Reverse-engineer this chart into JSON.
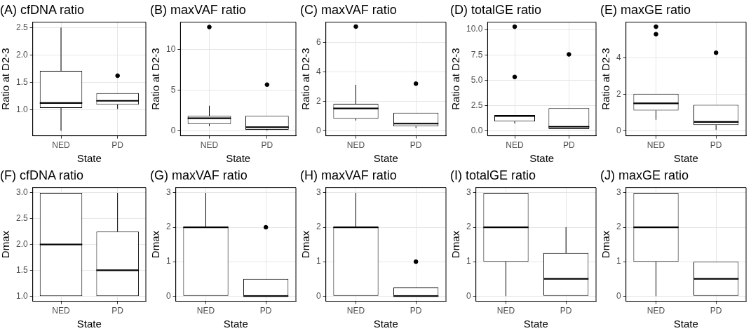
{
  "chart_data": [
    {
      "type": "box",
      "title": "(A) cfDNA ratio",
      "xlabel": "State",
      "ylabel": "Ratio at D2-3",
      "categories": [
        "NED",
        "PD"
      ],
      "ylim": [
        0.52,
        2.6
      ],
      "yticks": [
        {
          "value": 1,
          "label": "1.0"
        },
        {
          "value": 1.5,
          "label": "1.5"
        },
        {
          "value": 2,
          "label": "2.0"
        },
        {
          "value": 2.5,
          "label": "2.5"
        }
      ],
      "grid": true,
      "boxes": [
        {
          "low": 0.61,
          "q1": 1.03,
          "median": 1.12,
          "q3": 1.71,
          "high": 2.5
        },
        {
          "low": 1.01,
          "q1": 1.09,
          "median": 1.16,
          "q3": 1.3,
          "high": 1.3,
          "outliers": [
            1.62
          ]
        }
      ]
    },
    {
      "type": "box",
      "title": "(B) maxVAF ratio",
      "xlabel": "State",
      "ylabel": "Ratio at D2-3",
      "categories": [
        "NED",
        "PD"
      ],
      "ylim": [
        -0.6,
        13.4
      ],
      "yticks": [
        0,
        5,
        10
      ],
      "grid": true,
      "boxes": [
        {
          "low": 0.6,
          "q1": 0.85,
          "median": 1.55,
          "q3": 1.85,
          "high": 3.1,
          "outliers": [
            12.8
          ]
        },
        {
          "low": 0.05,
          "q1": 0.15,
          "median": 0.45,
          "q3": 1.85,
          "high": 1.85,
          "outliers": [
            5.7
          ]
        }
      ]
    },
    {
      "type": "box",
      "title": "(C) maxVAF ratio",
      "xlabel": "State",
      "ylabel": "Ratio at D2-3",
      "categories": [
        "NED",
        "PD"
      ],
      "ylim": [
        -0.34,
        7.4
      ],
      "yticks": [
        0,
        2,
        4,
        6
      ],
      "grid": true,
      "boxes": [
        {
          "low": 0.7,
          "q1": 0.82,
          "median": 1.52,
          "q3": 1.84,
          "high": 3.13,
          "outliers": [
            7.1
          ]
        },
        {
          "low": 0.19,
          "q1": 0.3,
          "median": 0.49,
          "q3": 1.23,
          "high": 1.23,
          "outliers": [
            3.21
          ]
        }
      ]
    },
    {
      "type": "box",
      "title": "(D) totalGE ratio",
      "xlabel": "State",
      "ylabel": "Ratio at D2-3",
      "categories": [
        "NED",
        "PD"
      ],
      "ylim": [
        -0.49,
        10.73
      ],
      "yticks": [
        {
          "value": 0,
          "label": "0.0"
        },
        {
          "value": 2.5,
          "label": "2.5"
        },
        {
          "value": 5,
          "label": "5.0"
        },
        {
          "value": 7.5,
          "label": "7.5"
        },
        {
          "value": 10,
          "label": "10.0"
        }
      ],
      "grid": true,
      "boxes": [
        {
          "low": 0.73,
          "q1": 0.92,
          "median": 1.47,
          "q3": 1.56,
          "high": 1.56,
          "outliers": [
            5.32,
            10.28
          ]
        },
        {
          "low": 0.18,
          "q1": 0.18,
          "median": 0.4,
          "q3": 2.23,
          "high": 2.23,
          "outliers": [
            7.55
          ]
        }
      ]
    },
    {
      "type": "box",
      "title": "(E) maxGE ratio",
      "xlabel": "State",
      "ylabel": "Ratio at D2-3",
      "categories": [
        "NED",
        "PD"
      ],
      "ylim": [
        -0.27,
        5.97
      ],
      "yticks": [
        0,
        2,
        4
      ],
      "grid": true,
      "boxes": [
        {
          "low": 0.61,
          "q1": 1.12,
          "median": 1.51,
          "q3": 2.04,
          "high": 2.04,
          "outliers": [
            5.31,
            5.72
          ]
        },
        {
          "low": 0.05,
          "q1": 0.32,
          "median": 0.49,
          "q3": 1.43,
          "high": 1.43,
          "outliers": [
            4.29
          ]
        }
      ]
    },
    {
      "type": "box",
      "title": "(F) cfDNA ratio",
      "xlabel": "State",
      "ylabel": "Dmax",
      "categories": [
        "NED",
        "PD"
      ],
      "ylim": [
        0.9,
        3.1
      ],
      "yticks": [
        {
          "value": 1,
          "label": "1.0"
        },
        {
          "value": 1.5,
          "label": "1.5"
        },
        {
          "value": 2,
          "label": "2.0"
        },
        {
          "value": 2.5,
          "label": "2.5"
        },
        {
          "value": 3,
          "label": "3.0"
        }
      ],
      "grid": true,
      "boxes": [
        {
          "low": 1,
          "q1": 1,
          "median": 2,
          "q3": 3,
          "high": 3
        },
        {
          "low": 1,
          "q1": 1,
          "median": 1.5,
          "q3": 2.25,
          "high": 3
        }
      ]
    },
    {
      "type": "box",
      "title": "(G) maxVAF ratio",
      "xlabel": "State",
      "ylabel": "Dmax",
      "categories": [
        "NED",
        "PD"
      ],
      "ylim": [
        -0.15,
        3.15
      ],
      "yticks": [
        0,
        1,
        2,
        3
      ],
      "grid": true,
      "boxes": [
        {
          "low": 0,
          "q1": 0,
          "median": 2,
          "q3": 2,
          "high": 3
        },
        {
          "low": 0,
          "q1": 0,
          "median": 0,
          "q3": 0.5,
          "high": 0.5,
          "outliers": [
            2
          ]
        }
      ]
    },
    {
      "type": "box",
      "title": "(H) maxVAF ratio",
      "xlabel": "State",
      "ylabel": "Dmax",
      "categories": [
        "NED",
        "PD"
      ],
      "ylim": [
        -0.15,
        3.15
      ],
      "yticks": [
        0,
        1,
        2,
        3
      ],
      "grid": true,
      "boxes": [
        {
          "low": 0,
          "q1": 0,
          "median": 2,
          "q3": 2,
          "high": 3
        },
        {
          "low": 0,
          "q1": 0,
          "median": 0,
          "q3": 0.25,
          "high": 0.25,
          "outliers": [
            1
          ]
        }
      ]
    },
    {
      "type": "box",
      "title": "(I) totalGE ratio",
      "xlabel": "State",
      "ylabel": "Dmax",
      "categories": [
        "NED",
        "PD"
      ],
      "ylim": [
        -0.15,
        3.15
      ],
      "yticks": [
        0,
        1,
        2,
        3
      ],
      "grid": true,
      "boxes": [
        {
          "low": 0,
          "q1": 1,
          "median": 2,
          "q3": 3,
          "high": 3
        },
        {
          "low": 0,
          "q1": 0,
          "median": 0.5,
          "q3": 1.25,
          "high": 2
        }
      ]
    },
    {
      "type": "box",
      "title": "(J) maxGE ratio",
      "xlabel": "State",
      "ylabel": "Dmax",
      "categories": [
        "NED",
        "PD"
      ],
      "ylim": [
        -0.15,
        3.15
      ],
      "yticks": [
        0,
        1,
        2,
        3
      ],
      "grid": true,
      "boxes": [
        {
          "low": 0,
          "q1": 1,
          "median": 2,
          "q3": 3,
          "high": 3
        },
        {
          "low": 0,
          "q1": 0,
          "median": 0.5,
          "q3": 1,
          "high": 1
        }
      ]
    }
  ]
}
